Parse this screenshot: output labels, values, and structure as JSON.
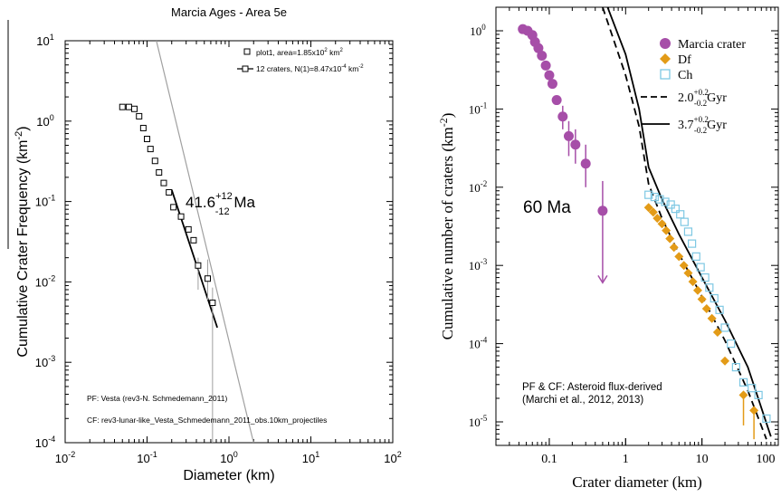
{
  "chart_data": [
    {
      "type": "scatter",
      "title": "Marcia Ages - Area 5e",
      "xlabel": "Diameter (km)",
      "ylabel": "Cumulative Crater Frequency (km",
      "ylabel_sup": "-2",
      "ylabel_end": ")",
      "xscale": "log",
      "yscale": "log",
      "xlim": [
        0.01,
        100
      ],
      "ylim": [
        0.0001,
        10
      ],
      "xtick_labels": [
        {
          "base": "10",
          "exp": "-2"
        },
        {
          "base": "10",
          "exp": "-1"
        },
        {
          "base": "10",
          "exp": "0"
        },
        {
          "base": "10",
          "exp": "1"
        },
        {
          "base": "10",
          "exp": "2"
        }
      ],
      "ytick_labels": [
        {
          "base": "10",
          "exp": "-4"
        },
        {
          "base": "10",
          "exp": "-3"
        },
        {
          "base": "10",
          "exp": "-2"
        },
        {
          "base": "10",
          "exp": "-1"
        },
        {
          "base": "10",
          "exp": "0"
        },
        {
          "base": "10",
          "exp": "1"
        }
      ],
      "legend": [
        {
          "label": "plot1, area=1.85x10",
          "sup": "2",
          "unit": " km",
          "unit_sup": "2",
          "marker": "square"
        },
        {
          "label": "12 craters, N(1)=8.47x10",
          "sup": "-4",
          "unit": " km",
          "unit_sup": "-2",
          "marker": "square-line"
        }
      ],
      "legend_position": "top-right",
      "age": {
        "value": "41.6",
        "plus": "+12",
        "minus": "-12",
        "unit": " Ma"
      },
      "notes": [
        "PF: Vesta (rev3-N. Schmedemann_2011)",
        "CF: rev3-lunar-like_Vesta_Schmedemann_2011_obs.10km_projectiles"
      ],
      "series": [
        {
          "name": "plot1",
          "points": [
            {
              "x": 0.05,
              "y": 1.5
            },
            {
              "x": 0.06,
              "y": 1.5
            },
            {
              "x": 0.07,
              "y": 1.42
            },
            {
              "x": 0.08,
              "y": 1.15
            },
            {
              "x": 0.09,
              "y": 0.82
            },
            {
              "x": 0.1,
              "y": 0.6
            },
            {
              "x": 0.11,
              "y": 0.45
            },
            {
              "x": 0.125,
              "y": 0.32
            },
            {
              "x": 0.14,
              "y": 0.23
            },
            {
              "x": 0.16,
              "y": 0.17
            },
            {
              "x": 0.185,
              "y": 0.13
            },
            {
              "x": 0.21,
              "y": 0.085
            },
            {
              "x": 0.26,
              "y": 0.065
            },
            {
              "x": 0.32,
              "y": 0.045
            },
            {
              "x": 0.37,
              "y": 0.033
            },
            {
              "x": 0.42,
              "y": 0.016
            },
            {
              "x": 0.55,
              "y": 0.011
            },
            {
              "x": 0.63,
              "y": 0.0055
            }
          ],
          "error_bars": [
            {
              "x": 0.42,
              "y_low": 0.008,
              "y_high": 0.02
            },
            {
              "x": 0.55,
              "y_low": 0.006,
              "y_high": 0.019
            },
            {
              "x": 0.63,
              "y_low": 0.0001,
              "y_high": 0.0085
            }
          ]
        },
        {
          "name": "isochron",
          "style": "grey-line",
          "points": [
            {
              "x": 0.13,
              "y": 10
            },
            {
              "x": 2.0,
              "y": 0.0001
            }
          ]
        },
        {
          "name": "fit",
          "style": "black-line",
          "points": [
            {
              "x": 0.2,
              "y": 0.14
            },
            {
              "x": 0.72,
              "y": 0.0027
            }
          ]
        }
      ]
    },
    {
      "type": "scatter",
      "xlabel": "Crater diameter (km)",
      "ylabel": "Cumulative number of craters (km",
      "ylabel_sup": "-2",
      "ylabel_end": ")",
      "xscale": "log",
      "yscale": "log",
      "xlim": [
        0.02,
        100
      ],
      "ylim": [
        5e-06,
        2
      ],
      "xtick_labels": [
        "0.1",
        "1",
        "10",
        "100"
      ],
      "ytick_labels": [
        {
          "base": "10",
          "exp": "-5"
        },
        {
          "base": "10",
          "exp": "-4"
        },
        {
          "base": "10",
          "exp": "-3"
        },
        {
          "base": "10",
          "exp": "-2"
        },
        {
          "base": "10",
          "exp": "-1"
        },
        {
          "base": "10",
          "exp": "0"
        }
      ],
      "legend": [
        {
          "label": "Marcia crater",
          "marker": "circle",
          "color": "#a64ea8"
        },
        {
          "label": "Df",
          "marker": "diamond",
          "color": "#e39b17"
        },
        {
          "label": "Ch",
          "marker": "open-square",
          "color": "#7ec8e3"
        },
        {
          "label": "2.0",
          "plus": "+0.2",
          "minus": "-0.2",
          "unit": "Gyr",
          "marker": "dashed-line"
        },
        {
          "label": "3.7",
          "plus": "+0.2",
          "minus": "-0.2",
          "unit": "Gyr",
          "marker": "solid-line"
        }
      ],
      "legend_position": "top-right",
      "age_label": "60 Ma",
      "notes": [
        "PF & CF: Asteroid flux-derived",
        "(Marchi et al., 2012, 2013)"
      ],
      "series": [
        {
          "name": "Marcia crater",
          "color": "#a64ea8",
          "points": [
            {
              "x": 0.045,
              "y": 1.05
            },
            {
              "x": 0.052,
              "y": 1.0
            },
            {
              "x": 0.06,
              "y": 0.88
            },
            {
              "x": 0.065,
              "y": 0.72
            },
            {
              "x": 0.072,
              "y": 0.6
            },
            {
              "x": 0.08,
              "y": 0.48
            },
            {
              "x": 0.09,
              "y": 0.36
            },
            {
              "x": 0.1,
              "y": 0.27
            },
            {
              "x": 0.11,
              "y": 0.21
            },
            {
              "x": 0.125,
              "y": 0.13
            },
            {
              "x": 0.15,
              "y": 0.08
            },
            {
              "x": 0.18,
              "y": 0.045
            },
            {
              "x": 0.22,
              "y": 0.035
            },
            {
              "x": 0.3,
              "y": 0.02
            },
            {
              "x": 0.5,
              "y": 0.005
            }
          ],
          "error_bars": [
            {
              "x": 0.15,
              "y_low": 0.055,
              "y_high": 0.11
            },
            {
              "x": 0.18,
              "y_low": 0.025,
              "y_high": 0.07
            },
            {
              "x": 0.22,
              "y_low": 0.02,
              "y_high": 0.055
            },
            {
              "x": 0.3,
              "y_low": 0.01,
              "y_high": 0.035
            }
          ],
          "upper_limit_arrow": {
            "x": 0.5,
            "y_from": 0.012,
            "y_to": 0.0006
          }
        },
        {
          "name": "Df",
          "color": "#e39b17",
          "points": [
            {
              "x": 2.0,
              "y": 0.0055
            },
            {
              "x": 2.3,
              "y": 0.0048
            },
            {
              "x": 2.6,
              "y": 0.004
            },
            {
              "x": 3.0,
              "y": 0.0034
            },
            {
              "x": 3.4,
              "y": 0.0028
            },
            {
              "x": 3.8,
              "y": 0.0022
            },
            {
              "x": 4.3,
              "y": 0.0017
            },
            {
              "x": 5.0,
              "y": 0.0013
            },
            {
              "x": 5.8,
              "y": 0.001
            },
            {
              "x": 6.6,
              "y": 0.0008
            },
            {
              "x": 7.6,
              "y": 0.00062
            },
            {
              "x": 8.8,
              "y": 0.00048
            },
            {
              "x": 10.0,
              "y": 0.00037
            },
            {
              "x": 11.5,
              "y": 0.00028
            },
            {
              "x": 13.5,
              "y": 0.00021
            },
            {
              "x": 16.0,
              "y": 0.00014
            },
            {
              "x": 20.0,
              "y": 6e-05
            },
            {
              "x": 35.0,
              "y": 2.2e-05
            },
            {
              "x": 48.0,
              "y": 1.4e-05
            }
          ]
        },
        {
          "name": "Ch",
          "color": "#7ec8e3",
          "points": [
            {
              "x": 2.0,
              "y": 0.008
            },
            {
              "x": 2.4,
              "y": 0.0075
            },
            {
              "x": 2.8,
              "y": 0.007
            },
            {
              "x": 3.3,
              "y": 0.0065
            },
            {
              "x": 3.9,
              "y": 0.006
            },
            {
              "x": 4.5,
              "y": 0.0053
            },
            {
              "x": 5.2,
              "y": 0.0045
            },
            {
              "x": 5.9,
              "y": 0.0036
            },
            {
              "x": 6.6,
              "y": 0.0027
            },
            {
              "x": 7.4,
              "y": 0.0019
            },
            {
              "x": 8.4,
              "y": 0.0013
            },
            {
              "x": 9.6,
              "y": 0.00095
            },
            {
              "x": 11.0,
              "y": 0.0007
            },
            {
              "x": 12.5,
              "y": 0.00052
            },
            {
              "x": 14.5,
              "y": 0.00038
            },
            {
              "x": 17.0,
              "y": 0.00027
            },
            {
              "x": 20.0,
              "y": 0.00016
            },
            {
              "x": 24.0,
              "y": 0.0001
            },
            {
              "x": 28.0,
              "y": 5e-05
            },
            {
              "x": 35.0,
              "y": 3.2e-05
            },
            {
              "x": 45.0,
              "y": 2.7e-05
            },
            {
              "x": 55.0,
              "y": 2.2e-05
            },
            {
              "x": 70.0,
              "y": 1.1e-05
            }
          ]
        },
        {
          "name": "2.0 Gyr",
          "style": "dashed",
          "points": [
            {
              "x": 0.5,
              "y": 2.0
            },
            {
              "x": 1.0,
              "y": 0.27
            },
            {
              "x": 1.5,
              "y": 0.06
            },
            {
              "x": 2.0,
              "y": 0.011
            },
            {
              "x": 3.0,
              "y": 0.004
            },
            {
              "x": 5.0,
              "y": 0.0014
            },
            {
              "x": 10.0,
              "y": 0.0004
            },
            {
              "x": 20.0,
              "y": 0.00011
            },
            {
              "x": 40.0,
              "y": 2.5e-05
            },
            {
              "x": 70.0,
              "y": 6e-06
            }
          ]
        },
        {
          "name": "3.7 Gyr",
          "style": "solid",
          "points": [
            {
              "x": 0.58,
              "y": 2.0
            },
            {
              "x": 1.0,
              "y": 0.5
            },
            {
              "x": 1.5,
              "y": 0.1
            },
            {
              "x": 2.0,
              "y": 0.018
            },
            {
              "x": 3.0,
              "y": 0.007
            },
            {
              "x": 5.0,
              "y": 0.0025
            },
            {
              "x": 10.0,
              "y": 0.0007
            },
            {
              "x": 20.0,
              "y": 0.0002
            },
            {
              "x": 40.0,
              "y": 5e-05
            },
            {
              "x": 80.0,
              "y": 6.5e-06
            }
          ]
        }
      ]
    }
  ],
  "colors": {
    "marcia": "#a64ea8",
    "df": "#e39b17",
    "ch": "#7ec8e3",
    "grey_line": "#a0a0a0",
    "axis": "#000000"
  }
}
